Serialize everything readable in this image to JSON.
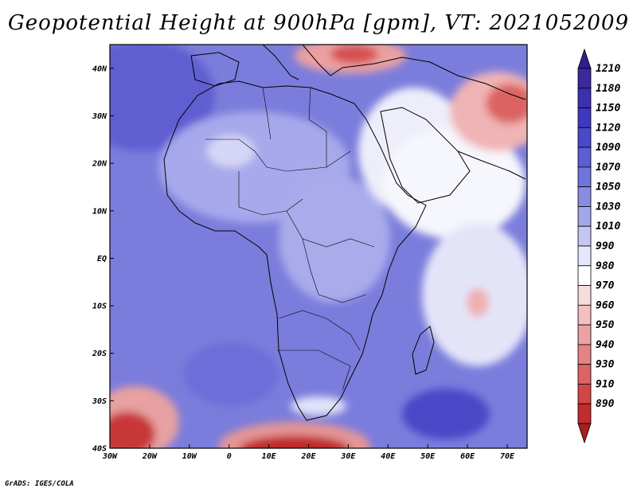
{
  "title": "Geopotential Height at 900hPa [gpm], VT: 2021052009",
  "footer": "GrADS: IGES/COLA",
  "map": {
    "lon_range": [
      -30,
      75
    ],
    "lat_range": [
      -40,
      45
    ],
    "lat_ticks": [
      {
        "value": 40,
        "label": "40N"
      },
      {
        "value": 30,
        "label": "30N"
      },
      {
        "value": 20,
        "label": "20N"
      },
      {
        "value": 10,
        "label": "10N"
      },
      {
        "value": 0,
        "label": "EQ"
      },
      {
        "value": -10,
        "label": "10S"
      },
      {
        "value": -20,
        "label": "20S"
      },
      {
        "value": -30,
        "label": "30S"
      },
      {
        "value": -40,
        "label": "40S"
      }
    ],
    "lon_ticks": [
      {
        "value": -30,
        "label": "30W"
      },
      {
        "value": -20,
        "label": "20W"
      },
      {
        "value": -10,
        "label": "10W"
      },
      {
        "value": 0,
        "label": "0"
      },
      {
        "value": 10,
        "label": "10E"
      },
      {
        "value": 20,
        "label": "20E"
      },
      {
        "value": 30,
        "label": "30E"
      },
      {
        "value": 40,
        "label": "40E"
      },
      {
        "value": 50,
        "label": "50E"
      },
      {
        "value": 60,
        "label": "60E"
      },
      {
        "value": 70,
        "label": "70E"
      }
    ]
  },
  "colorbar": {
    "levels": [
      {
        "label": "1210",
        "color": "#3a2a9c"
      },
      {
        "label": "1180",
        "color": "#3b30b0"
      },
      {
        "label": "1150",
        "color": "#3e38c0"
      },
      {
        "label": "1120",
        "color": "#4a48cc"
      },
      {
        "label": "1090",
        "color": "#5c5ed6"
      },
      {
        "label": "1070",
        "color": "#7274dd"
      },
      {
        "label": "1050",
        "color": "#8a8ce4"
      },
      {
        "label": "1030",
        "color": "#a3a6eb"
      },
      {
        "label": "1010",
        "color": "#c4c6f3"
      },
      {
        "label": "990",
        "color": "#e6e7fa"
      },
      {
        "label": "980",
        "color": "#ffffff"
      },
      {
        "label": "970",
        "color": "#f7dcdc"
      },
      {
        "label": "960",
        "color": "#f2c0c0"
      },
      {
        "label": "950",
        "color": "#eba2a2"
      },
      {
        "label": "940",
        "color": "#e48383"
      },
      {
        "label": "930",
        "color": "#dc6464"
      },
      {
        "label": "910",
        "color": "#d24646"
      },
      {
        "label": "890",
        "color": "#c22c2c"
      }
    ],
    "top_arrow_color": "#2e1f8e",
    "bottom_arrow_color": "#a81f1f"
  }
}
